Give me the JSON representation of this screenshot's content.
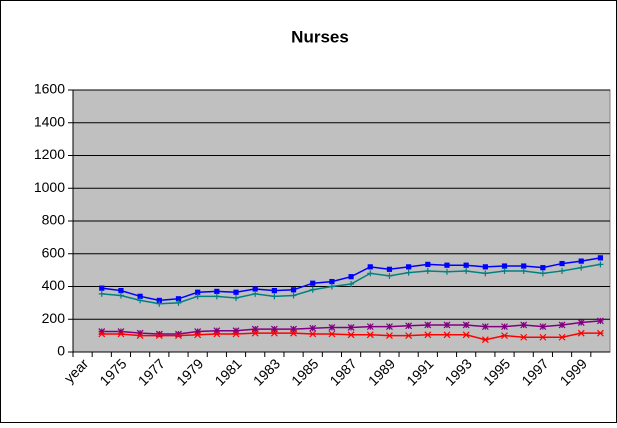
{
  "chart_data": {
    "type": "line",
    "title": "Nurses",
    "categories": [
      "year",
      null,
      "1975",
      null,
      "1977",
      null,
      "1979",
      null,
      "1981",
      null,
      "1983",
      null,
      "1985",
      null,
      "1987",
      null,
      "1989",
      null,
      "1991",
      null,
      "1993",
      null,
      "1995",
      null,
      "1997",
      null,
      "1999",
      null
    ],
    "series": [
      {
        "color": "#0000ff",
        "marker": "square",
        "values": [
          null,
          390,
          375,
          340,
          315,
          325,
          365,
          370,
          365,
          385,
          375,
          380,
          420,
          430,
          460,
          520,
          505,
          520,
          535,
          530,
          530,
          520,
          525,
          525,
          515,
          540,
          555,
          575
        ]
      },
      {
        "color": "#008080",
        "marker": "plus",
        "values": [
          null,
          355,
          345,
          315,
          295,
          300,
          340,
          340,
          330,
          355,
          340,
          345,
          380,
          400,
          415,
          480,
          465,
          485,
          495,
          490,
          495,
          480,
          495,
          495,
          480,
          495,
          515,
          535
        ]
      },
      {
        "color": "#800080",
        "marker": "asterisk",
        "values": [
          null,
          125,
          125,
          115,
          110,
          110,
          125,
          130,
          130,
          140,
          140,
          140,
          145,
          150,
          150,
          155,
          155,
          160,
          165,
          165,
          165,
          155,
          155,
          165,
          155,
          165,
          180,
          190
        ]
      },
      {
        "color": "#ff0000",
        "marker": "star",
        "values": [
          null,
          110,
          110,
          100,
          100,
          100,
          105,
          110,
          110,
          115,
          115,
          115,
          110,
          110,
          105,
          105,
          100,
          100,
          105,
          105,
          105,
          75,
          100,
          90,
          90,
          90,
          115,
          115
        ]
      }
    ],
    "ylim": [
      0,
      1600
    ],
    "yticks": [
      0,
      200,
      400,
      600,
      800,
      1000,
      1200,
      1400,
      1600
    ],
    "grid": true,
    "plot_background": "#c0c0c0"
  }
}
